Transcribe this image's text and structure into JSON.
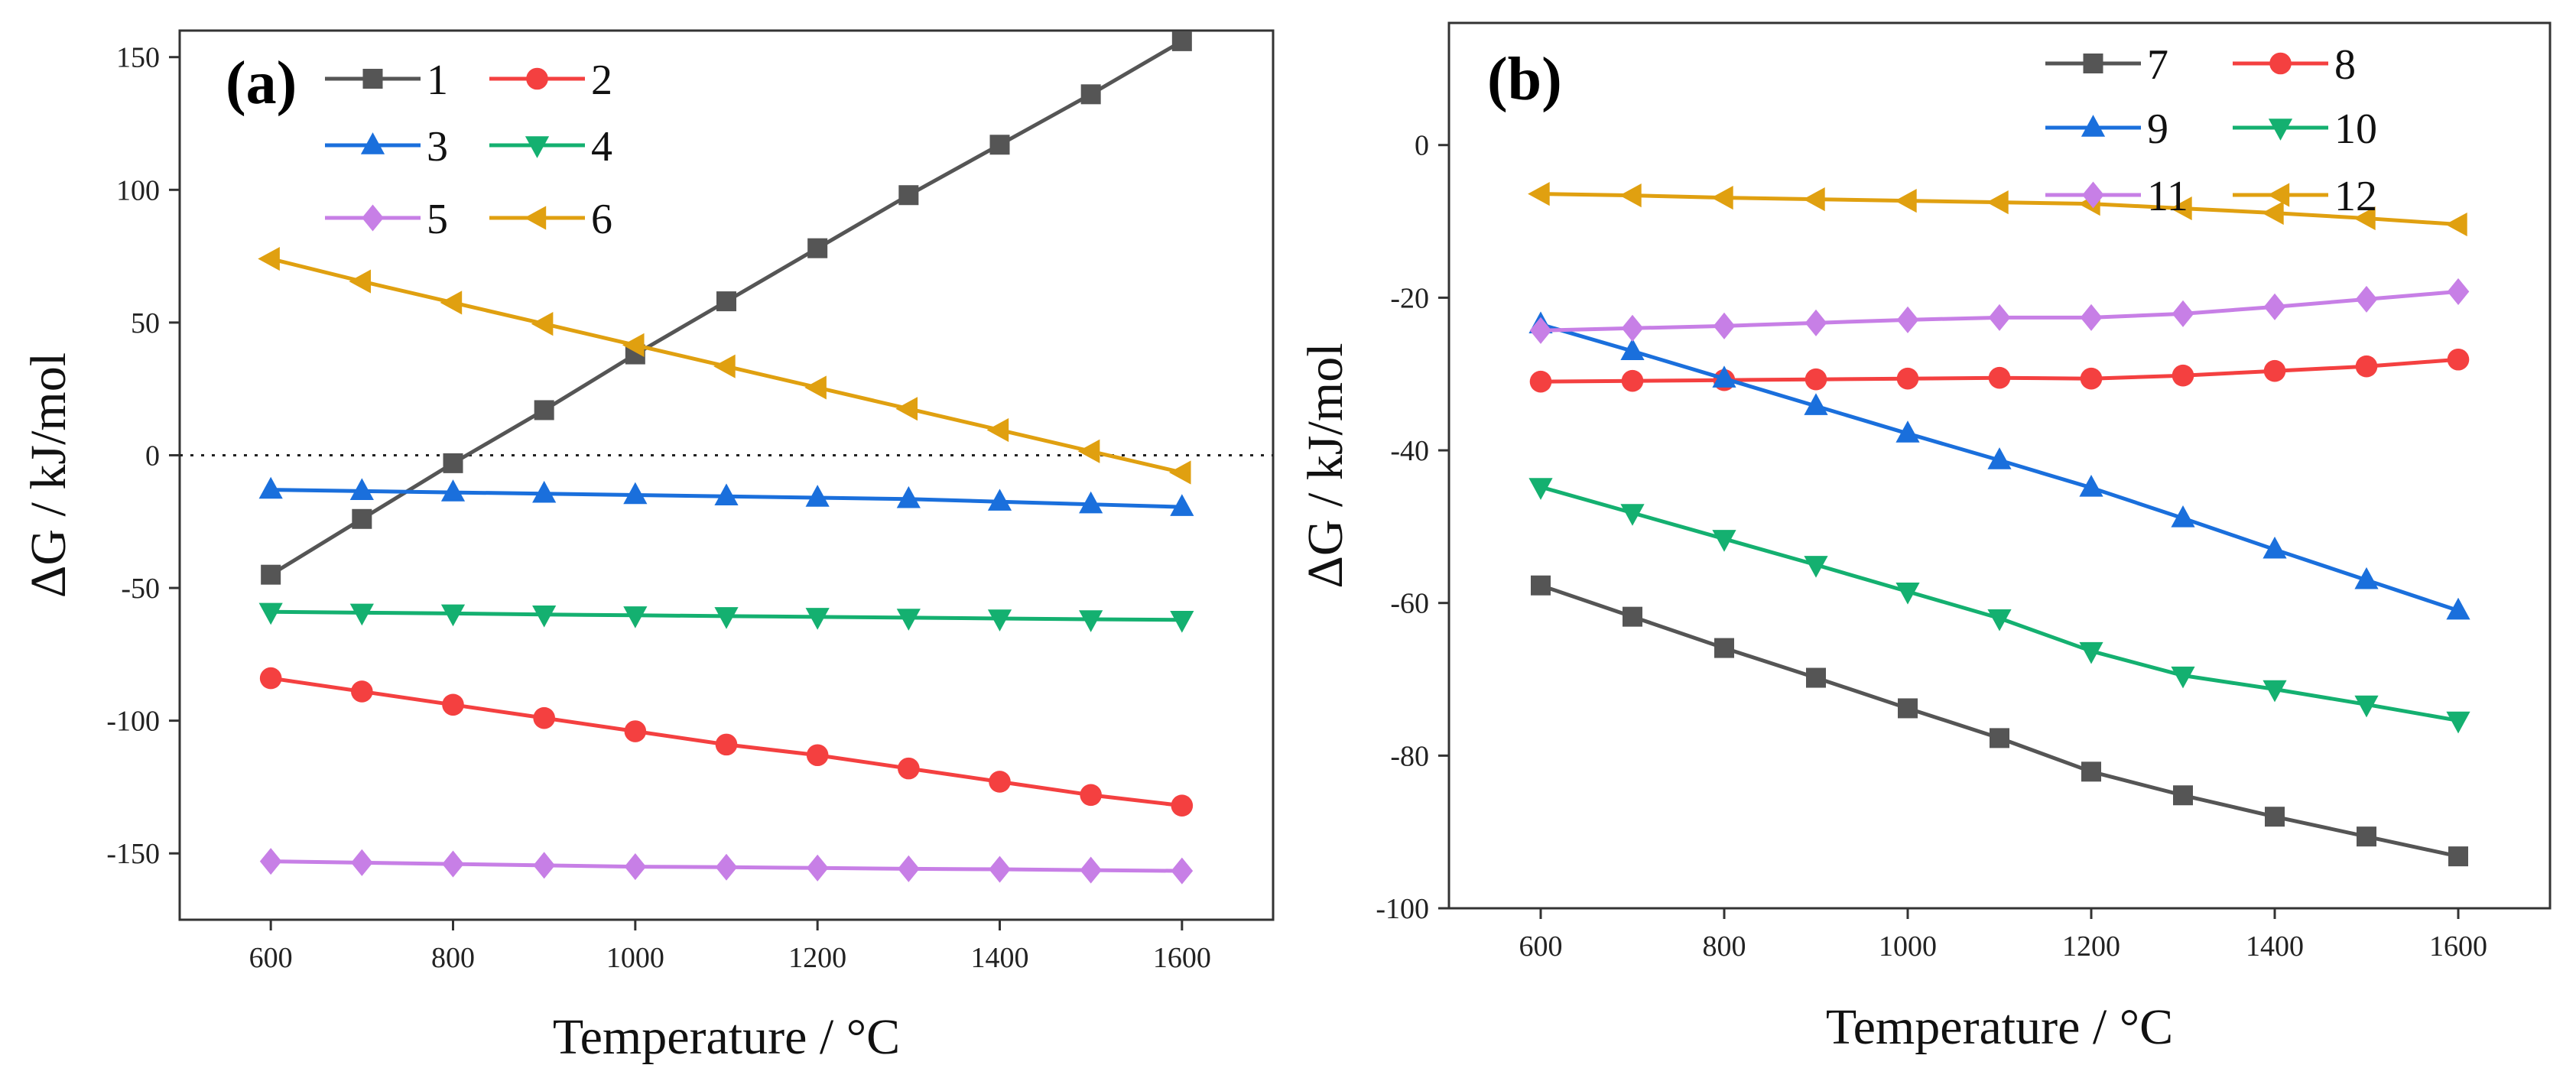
{
  "figure": {
    "panels": [
      {
        "id": "a",
        "label": "(a)"
      },
      {
        "id": "b",
        "label": "(b)"
      }
    ]
  },
  "chart_data": [
    {
      "id": "a",
      "type": "line",
      "title": "(a)",
      "xlabel": "Temperature / °C",
      "ylabel": "ΔG / kJ/mol",
      "xlim": [
        500,
        1700
      ],
      "ylim": [
        -175,
        160
      ],
      "xticks": [
        600,
        800,
        1000,
        1200,
        1400,
        1600
      ],
      "yticks": [
        -150,
        -100,
        -50,
        0,
        50,
        100,
        150
      ],
      "x": [
        600,
        700,
        800,
        900,
        1000,
        1100,
        1200,
        1300,
        1400,
        1500,
        1600
      ],
      "zero_line": true,
      "legend_placement": "top",
      "series": [
        {
          "name": "1",
          "color": "#555555",
          "marker": "square",
          "values": [
            -45,
            -24,
            -3,
            17,
            38,
            58,
            78,
            98,
            117,
            136,
            156
          ]
        },
        {
          "name": "2",
          "color": "#f44040",
          "marker": "circle",
          "values": [
            -84,
            -89,
            -94,
            -99,
            -104,
            -109,
            -113,
            -118,
            -123,
            -128,
            -132
          ]
        },
        {
          "name": "3",
          "color": "#1a6fdc",
          "marker": "triangle-up",
          "values": [
            -13,
            -13.5,
            -14,
            -14.5,
            -15,
            -15.5,
            -16,
            -16.5,
            -17.5,
            -18.5,
            -19.5
          ]
        },
        {
          "name": "4",
          "color": "#14b070",
          "marker": "triangle-down",
          "values": [
            -59,
            -59.3,
            -59.6,
            -60,
            -60.3,
            -60.6,
            -60.9,
            -61.2,
            -61.5,
            -61.8,
            -62
          ]
        },
        {
          "name": "5",
          "color": "#c77fe6",
          "marker": "diamond",
          "values": [
            -153,
            -153.5,
            -154,
            -154.5,
            -155,
            -155.2,
            -155.5,
            -155.8,
            -156,
            -156.3,
            -156.6
          ]
        },
        {
          "name": "6",
          "color": "#e0a010",
          "marker": "triangle-left",
          "values": [
            74,
            65.5,
            57.5,
            49.5,
            41.5,
            33.5,
            25.5,
            17.5,
            9.5,
            1.5,
            -6.5
          ]
        }
      ]
    },
    {
      "id": "b",
      "type": "line",
      "title": "(b)",
      "xlabel": "Temperature / °C",
      "ylabel": "ΔG / kJ/mol",
      "xlim": [
        500,
        1700
      ],
      "ylim": [
        -100,
        16
      ],
      "xticks": [
        600,
        800,
        1000,
        1200,
        1400,
        1600
      ],
      "yticks": [
        -100,
        -80,
        -60,
        -40,
        -20,
        0
      ],
      "x": [
        600,
        700,
        800,
        900,
        1000,
        1100,
        1200,
        1300,
        1400,
        1500,
        1600
      ],
      "legend_placement": "top-right",
      "series": [
        {
          "name": "7",
          "color": "#555555",
          "marker": "square",
          "values": [
            -57.7,
            -61.8,
            -65.9,
            -69.8,
            -73.8,
            -77.7,
            -82.1,
            -85.2,
            -88,
            -90.6,
            -93.2
          ]
        },
        {
          "name": "8",
          "color": "#f44040",
          "marker": "circle",
          "values": [
            -31,
            -30.9,
            -30.8,
            -30.7,
            -30.6,
            -30.5,
            -30.6,
            -30.2,
            -29.6,
            -29,
            -28.1
          ]
        },
        {
          "name": "9",
          "color": "#1a6fdc",
          "marker": "triangle-up",
          "values": [
            -23.5,
            -27,
            -30.6,
            -34.2,
            -37.8,
            -41.3,
            -44.9,
            -48.9,
            -53,
            -57,
            -61
          ]
        },
        {
          "name": "10",
          "color": "#14b070",
          "marker": "triangle-down",
          "values": [
            -44.8,
            -48.2,
            -51.6,
            -55,
            -58.5,
            -62,
            -66.3,
            -69.5,
            -71.3,
            -73.3,
            -75.4
          ]
        },
        {
          "name": "11",
          "color": "#c77fe6",
          "marker": "diamond",
          "values": [
            -24.3,
            -24,
            -23.7,
            -23.3,
            -22.9,
            -22.6,
            -22.6,
            -22.1,
            -21.2,
            -20.2,
            -19.2
          ]
        },
        {
          "name": "12",
          "color": "#e0a010",
          "marker": "triangle-left",
          "values": [
            -6.4,
            -6.6,
            -6.9,
            -7.1,
            -7.3,
            -7.5,
            -7.7,
            -8.3,
            -8.9,
            -9.6,
            -10.4
          ]
        }
      ]
    }
  ]
}
